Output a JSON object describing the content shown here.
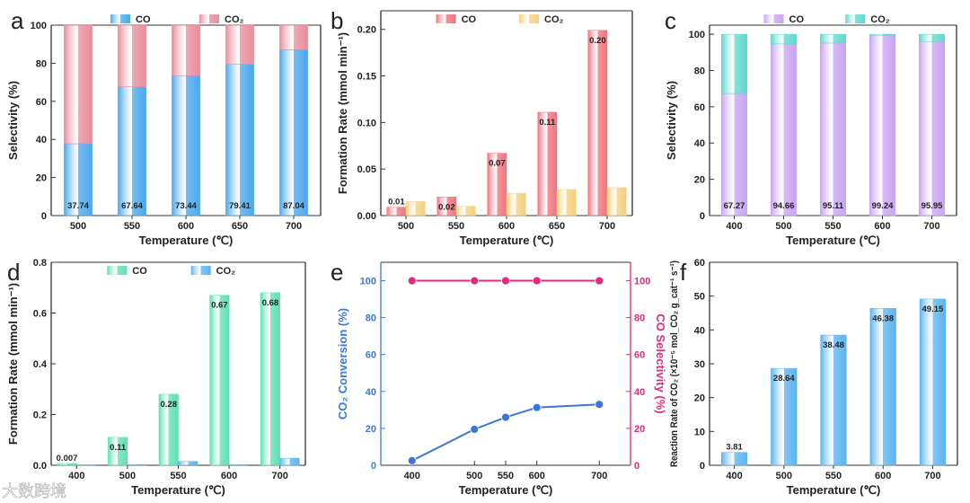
{
  "watermark": "大数跨境",
  "chart_data": [
    {
      "panel": "a",
      "type": "bar",
      "stacked": true,
      "categories": [
        "500",
        "550",
        "600",
        "650",
        "700"
      ],
      "series": [
        {
          "name": "CO",
          "values": [
            37.74,
            67.64,
            73.44,
            79.41,
            87.04
          ],
          "color": "#4aa8ee",
          "labels": [
            "37.74",
            "67.64",
            "73.44",
            "79.41",
            "87.04"
          ]
        },
        {
          "name": "CO₂",
          "values": [
            62.26,
            32.36,
            26.56,
            20.59,
            12.96
          ],
          "color": "#e98c9c"
        }
      ],
      "xlabel": "Temperature (℃)",
      "ylabel": "Selectivity (%)",
      "ylim": [
        0,
        100
      ],
      "yticks": [
        "0",
        "20",
        "40",
        "60",
        "80",
        "100"
      ],
      "legend": "top"
    },
    {
      "panel": "b",
      "type": "bar",
      "stacked": false,
      "categories": [
        "500",
        "550",
        "600",
        "650",
        "700"
      ],
      "series": [
        {
          "name": "CO",
          "values": [
            0.009,
            0.02,
            0.067,
            0.111,
            0.199
          ],
          "color": "#f2727c",
          "labels": [
            "0.01",
            "0.02",
            "0.07",
            "0.11",
            "0.20"
          ]
        },
        {
          "name": "CO₂",
          "values": [
            0.015,
            0.01,
            0.024,
            0.028,
            0.03
          ],
          "color": "#f5cf7c"
        }
      ],
      "xlabel": "Temperature (℃)",
      "ylabel": "Formation Rate (mmol min⁻¹)",
      "ylim": [
        0,
        0.22
      ],
      "yticks": [
        "0.00",
        "0.05",
        "0.10",
        "0.15",
        "0.20"
      ],
      "legend": "top"
    },
    {
      "panel": "c",
      "type": "bar",
      "stacked": true,
      "categories": [
        "400",
        "500",
        "550",
        "600",
        "700"
      ],
      "series": [
        {
          "name": "CO",
          "values": [
            67.27,
            94.66,
            95.11,
            99.24,
            95.95
          ],
          "color": "#c8a4f2",
          "labels": [
            "67.27",
            "94.66",
            "95.11",
            "99.24",
            "95.95"
          ]
        },
        {
          "name": "CO₂",
          "values": [
            32.73,
            5.34,
            4.89,
            0.76,
            4.05
          ],
          "color": "#5fd8cc"
        }
      ],
      "xlabel": "Temperature (℃)",
      "ylabel": "Selectivity (%)",
      "ylim": [
        0,
        105
      ],
      "yticks": [
        "0",
        "20",
        "40",
        "60",
        "80",
        "100"
      ],
      "legend": "top"
    },
    {
      "panel": "d",
      "type": "bar",
      "stacked": false,
      "categories": [
        "400",
        "500",
        "550",
        "600",
        "700"
      ],
      "series": [
        {
          "name": "CO",
          "values": [
            0.007,
            0.11,
            0.28,
            0.67,
            0.68
          ],
          "color": "#5fe0b2",
          "labels": [
            "0.007",
            "0.11",
            "0.28",
            "0.67",
            "0.68"
          ]
        },
        {
          "name": "CO₂",
          "values": [
            0.002,
            0.003,
            0.015,
            0.003,
            0.028
          ],
          "color": "#5ab4f0"
        }
      ],
      "xlabel": "Temperature (℃)",
      "ylabel": "Formation Rate (mmol min⁻¹)",
      "ylim": [
        0,
        0.8
      ],
      "yticks": [
        "0.0",
        "0.2",
        "0.4",
        "0.6",
        "0.8"
      ],
      "legend": "top"
    },
    {
      "panel": "e",
      "type": "line",
      "x": [
        400,
        500,
        550,
        600,
        700
      ],
      "xlim": [
        350,
        750
      ],
      "xticks": [
        "400",
        "500",
        "550",
        "600",
        "700"
      ],
      "series": [
        {
          "name": "CO₂ Conversion",
          "values": [
            2.5,
            19.5,
            26.0,
            31.3,
            33.0
          ],
          "color": "#3a78d8",
          "axis": "left"
        },
        {
          "name": "CO Selectivity",
          "values": [
            100,
            100,
            100,
            100,
            100
          ],
          "color": "#e8287e",
          "axis": "right"
        }
      ],
      "xlabel": "Temperature (℃)",
      "ylabel": "CO₂ Conversion (%)",
      "ylabel_right": "CO Selectivity (%)",
      "ylim": [
        0,
        110
      ],
      "yticks": [
        "0",
        "20",
        "40",
        "60",
        "80",
        "100"
      ]
    },
    {
      "panel": "f",
      "type": "bar",
      "stacked": false,
      "categories": [
        "400",
        "500",
        "550",
        "600",
        "700"
      ],
      "series": [
        {
          "name": "Reaction Rate",
          "values": [
            3.81,
            28.64,
            38.48,
            46.38,
            49.15
          ],
          "color": "#5ab4f0",
          "labels": [
            "3.81",
            "28.64",
            "38.48",
            "46.38",
            "49.15"
          ]
        }
      ],
      "xlabel": "Temperature (℃)",
      "ylabel": "Reaction Rate of CO₂ (×10⁻⁵ mol_CO₂ g_cat⁻¹ s⁻¹)",
      "ylim": [
        0,
        60
      ],
      "yticks": [
        "0",
        "10",
        "20",
        "30",
        "40",
        "50",
        "60"
      ]
    }
  ]
}
